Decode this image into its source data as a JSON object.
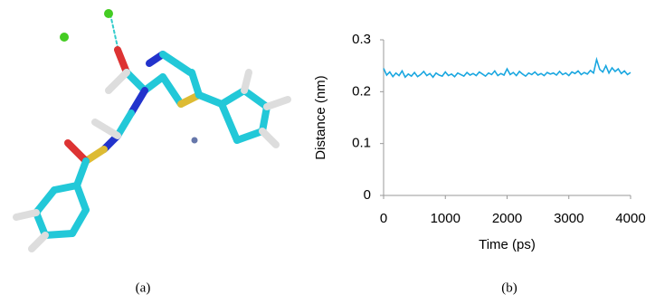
{
  "chart_data": {
    "type": "line",
    "xlabel": "Time (ps)",
    "ylabel": "Distance (nm)",
    "x": [
      0,
      50,
      100,
      150,
      200,
      250,
      300,
      350,
      400,
      450,
      500,
      550,
      600,
      650,
      700,
      750,
      800,
      850,
      900,
      950,
      1000,
      1050,
      1100,
      1150,
      1200,
      1250,
      1300,
      1350,
      1400,
      1450,
      1500,
      1550,
      1600,
      1650,
      1700,
      1750,
      1800,
      1850,
      1900,
      1950,
      2000,
      2050,
      2100,
      2150,
      2200,
      2250,
      2300,
      2350,
      2400,
      2450,
      2500,
      2550,
      2600,
      2650,
      2700,
      2750,
      2800,
      2850,
      2900,
      2950,
      3000,
      3050,
      3100,
      3150,
      3200,
      3250,
      3300,
      3350,
      3400,
      3450,
      3500,
      3550,
      3600,
      3650,
      3700,
      3750,
      3800,
      3850,
      3900,
      3950,
      4000
    ],
    "series": [
      {
        "color": "#1aa7e0",
        "values": [
          0.245,
          0.232,
          0.238,
          0.229,
          0.236,
          0.231,
          0.24,
          0.228,
          0.234,
          0.23,
          0.237,
          0.229,
          0.233,
          0.239,
          0.231,
          0.235,
          0.228,
          0.236,
          0.232,
          0.23,
          0.238,
          0.231,
          0.234,
          0.229,
          0.236,
          0.233,
          0.23,
          0.237,
          0.232,
          0.235,
          0.231,
          0.238,
          0.234,
          0.23,
          0.236,
          0.233,
          0.24,
          0.231,
          0.235,
          0.232,
          0.244,
          0.233,
          0.237,
          0.231,
          0.239,
          0.234,
          0.23,
          0.236,
          0.233,
          0.238,
          0.232,
          0.235,
          0.231,
          0.237,
          0.234,
          0.236,
          0.232,
          0.239,
          0.233,
          0.236,
          0.231,
          0.238,
          0.235,
          0.24,
          0.233,
          0.237,
          0.234,
          0.241,
          0.236,
          0.262,
          0.243,
          0.238,
          0.25,
          0.236,
          0.246,
          0.239,
          0.244,
          0.235,
          0.24,
          0.233,
          0.237
        ]
      }
    ],
    "xlim": [
      0,
      4000
    ],
    "xticks": [
      0,
      1000,
      2000,
      3000,
      4000
    ],
    "ylim": [
      0,
      0.3
    ],
    "yticks": [
      0,
      0.1,
      0.2,
      0.3
    ]
  },
  "captions": [
    "(a)",
    "(b)"
  ]
}
